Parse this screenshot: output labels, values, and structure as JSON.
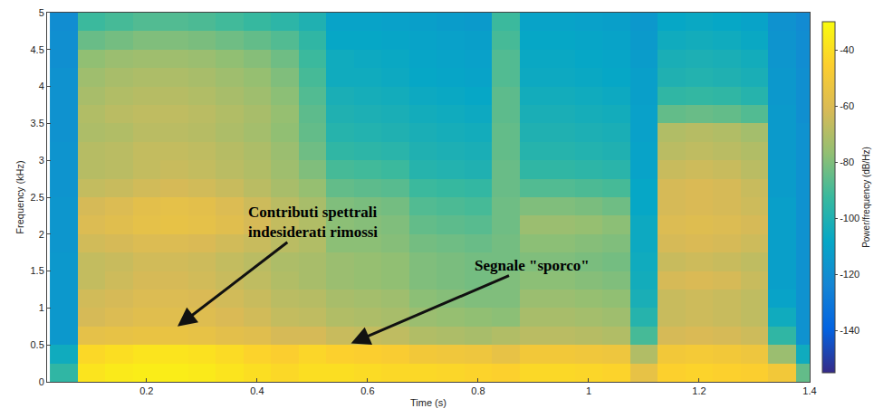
{
  "chart_data": {
    "type": "heatmap",
    "x_label": "Time (s)",
    "y_label": "Frequency (kHz)",
    "xlim": [
      0.02,
      1.4
    ],
    "ylim": [
      0,
      5
    ],
    "xticks": [
      0.2,
      0.4,
      0.6,
      0.8,
      1,
      1.2,
      1.4
    ],
    "yticks": [
      0,
      0.5,
      1,
      1.5,
      2,
      2.5,
      3,
      3.5,
      4,
      4.5,
      5
    ],
    "x": [
      0.05,
      0.1,
      0.15,
      0.2,
      0.25,
      0.3,
      0.35,
      0.4,
      0.45,
      0.5,
      0.55,
      0.6,
      0.65,
      0.7,
      0.75,
      0.8,
      0.85,
      0.9,
      0.95,
      1.0,
      1.05,
      1.1,
      1.15,
      1.2,
      1.25,
      1.3,
      1.35,
      1.4
    ],
    "y": [
      0.125,
      0.375,
      0.625,
      0.875,
      1.125,
      1.375,
      1.625,
      1.875,
      2.125,
      2.375,
      2.625,
      2.875,
      3.125,
      3.375,
      3.625,
      3.875,
      4.125,
      4.375,
      4.625,
      4.875
    ],
    "z": [
      [
        -95,
        -38,
        -36,
        -35,
        -35,
        -36,
        -38,
        -40,
        -42,
        -40,
        -40,
        -41,
        -42,
        -42,
        -43,
        -44,
        -45,
        -42,
        -42,
        -43,
        -44,
        -55,
        -45,
        -44,
        -45,
        -46,
        -50,
        -85
      ],
      [
        -105,
        -42,
        -40,
        -38,
        -38,
        -39,
        -41,
        -44,
        -46,
        -43,
        -45,
        -46,
        -47,
        -50,
        -51,
        -52,
        -55,
        -50,
        -50,
        -51,
        -52,
        -70,
        -50,
        -49,
        -50,
        -52,
        -75,
        -105
      ],
      [
        -115,
        -56,
        -55,
        -54,
        -54,
        -55,
        -57,
        -58,
        -62,
        -62,
        -65,
        -66,
        -67,
        -70,
        -71,
        -72,
        -70,
        -68,
        -68,
        -69,
        -70,
        -90,
        -62,
        -61,
        -62,
        -64,
        -95,
        -118
      ],
      [
        -115,
        -62,
        -60,
        -58,
        -58,
        -59,
        -61,
        -63,
        -66,
        -67,
        -70,
        -71,
        -72,
        -75,
        -76,
        -77,
        -78,
        -72,
        -72,
        -73,
        -74,
        -98,
        -65,
        -64,
        -65,
        -67,
        -105,
        -118
      ],
      [
        -115,
        -63,
        -62,
        -60,
        -60,
        -61,
        -63,
        -65,
        -68,
        -69,
        -72,
        -73,
        -74,
        -78,
        -79,
        -80,
        -80,
        -75,
        -75,
        -76,
        -77,
        -102,
        -65,
        -64,
        -65,
        -67,
        -110,
        -118
      ],
      [
        -115,
        -66,
        -64,
        -62,
        -62,
        -63,
        -65,
        -67,
        -70,
        -72,
        -75,
        -76,
        -77,
        -80,
        -81,
        -82,
        -80,
        -78,
        -78,
        -79,
        -80,
        -104,
        -62,
        -61,
        -62,
        -65,
        -112,
        -118
      ],
      [
        -115,
        -66,
        -65,
        -63,
        -63,
        -64,
        -66,
        -68,
        -71,
        -72,
        -75,
        -76,
        -77,
        -80,
        -81,
        -82,
        -82,
        -80,
        -80,
        -81,
        -82,
        -105,
        -65,
        -64,
        -65,
        -67,
        -112,
        -118
      ],
      [
        -116,
        -63,
        -62,
        -60,
        -60,
        -61,
        -63,
        -65,
        -68,
        -70,
        -78,
        -78,
        -79,
        -82,
        -83,
        -84,
        -82,
        -78,
        -78,
        -79,
        -80,
        -106,
        -62,
        -61,
        -62,
        -64,
        -112,
        -118
      ],
      [
        -116,
        -60,
        -58,
        -56,
        -55,
        -56,
        -58,
        -62,
        -66,
        -70,
        -78,
        -79,
        -80,
        -85,
        -86,
        -87,
        -83,
        -75,
        -75,
        -76,
        -78,
        -106,
        -60,
        -59,
        -60,
        -62,
        -112,
        -118
      ],
      [
        -116,
        -62,
        -60,
        -57,
        -56,
        -57,
        -60,
        -64,
        -68,
        -72,
        -80,
        -81,
        -82,
        -88,
        -89,
        -90,
        -83,
        -80,
        -80,
        -81,
        -83,
        -108,
        -62,
        -61,
        -62,
        -64,
        -112,
        -118
      ],
      [
        -117,
        -66,
        -65,
        -63,
        -62,
        -63,
        -65,
        -68,
        -72,
        -76,
        -85,
        -86,
        -87,
        -92,
        -93,
        -94,
        -84,
        -88,
        -88,
        -89,
        -90,
        -108,
        -62,
        -61,
        -62,
        -65,
        -113,
        -118
      ],
      [
        -117,
        -69,
        -68,
        -66,
        -65,
        -66,
        -68,
        -70,
        -74,
        -80,
        -90,
        -91,
        -92,
        -98,
        -99,
        -100,
        -84,
        -95,
        -95,
        -96,
        -97,
        -110,
        -65,
        -64,
        -65,
        -68,
        -113,
        -118
      ],
      [
        -117,
        -69,
        -68,
        -66,
        -66,
        -67,
        -69,
        -71,
        -75,
        -83,
        -95,
        -96,
        -97,
        -100,
        -101,
        -102,
        -85,
        -98,
        -98,
        -99,
        -100,
        -110,
        -68,
        -67,
        -68,
        -70,
        -114,
        -118
      ],
      [
        -118,
        -71,
        -70,
        -68,
        -68,
        -69,
        -71,
        -73,
        -77,
        -85,
        -98,
        -99,
        -100,
        -102,
        -103,
        -104,
        -85,
        -100,
        -100,
        -101,
        -102,
        -111,
        -70,
        -69,
        -70,
        -73,
        -114,
        -118
      ],
      [
        -118,
        -70,
        -68,
        -67,
        -67,
        -68,
        -70,
        -72,
        -76,
        -86,
        -100,
        -101,
        -102,
        -104,
        -105,
        -106,
        -86,
        -102,
        -102,
        -103,
        -104,
        -111,
        -85,
        -84,
        -85,
        -88,
        -114,
        -119
      ],
      [
        -118,
        -72,
        -70,
        -69,
        -69,
        -70,
        -72,
        -74,
        -78,
        -88,
        -102,
        -103,
        -104,
        -106,
        -107,
        -108,
        -86,
        -104,
        -104,
        -105,
        -106,
        -112,
        -95,
        -94,
        -95,
        -98,
        -115,
        -119
      ],
      [
        -118,
        -74,
        -72,
        -71,
        -71,
        -72,
        -74,
        -76,
        -80,
        -90,
        -105,
        -105,
        -106,
        -108,
        -109,
        -110,
        -88,
        -106,
        -106,
        -107,
        -108,
        -112,
        -100,
        -99,
        -100,
        -102,
        -115,
        -119
      ],
      [
        -119,
        -77,
        -75,
        -74,
        -74,
        -75,
        -77,
        -79,
        -83,
        -92,
        -105,
        -106,
        -107,
        -109,
        -110,
        -111,
        -88,
        -107,
        -107,
        -108,
        -109,
        -113,
        -102,
        -101,
        -102,
        -104,
        -116,
        -120
      ],
      [
        -119,
        -84,
        -82,
        -80,
        -80,
        -81,
        -83,
        -85,
        -88,
        -95,
        -108,
        -108,
        -109,
        -110,
        -111,
        -112,
        -90,
        -108,
        -108,
        -109,
        -110,
        -114,
        -105,
        -104,
        -105,
        -107,
        -117,
        -120
      ],
      [
        -120,
        -92,
        -90,
        -88,
        -88,
        -89,
        -91,
        -93,
        -96,
        -100,
        -110,
        -110,
        -111,
        -112,
        -113,
        -114,
        -92,
        -110,
        -110,
        -111,
        -112,
        -115,
        -108,
        -107,
        -108,
        -110,
        -118,
        -121
      ]
    ],
    "colorbar": {
      "title": "Power/frequency (dB/Hz)",
      "range": [
        -155,
        -30
      ],
      "ticks": [
        -140,
        -120,
        -100,
        -80,
        -60,
        -40
      ]
    },
    "annotations": [
      {
        "text": "Contributi spettrali indesiderati rimossi",
        "x": 0.256,
        "y": 0.75
      },
      {
        "text": "Segnale \"sporco\"",
        "x": 0.57,
        "y": 0.52
      }
    ]
  }
}
